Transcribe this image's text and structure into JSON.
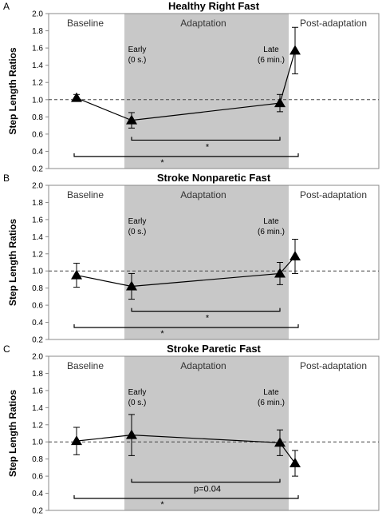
{
  "figure": {
    "colors": {
      "shade": "#c8c8c8",
      "ink": "#000000",
      "box": "#888888"
    }
  },
  "chart_data": [
    {
      "type": "line",
      "panel_letter": "A",
      "title": "Healthy Right Fast",
      "ylabel": "Step Length Ratios",
      "ylim": [
        0.2,
        2.0
      ],
      "yticks": [
        "0.2",
        "0.4",
        "0.6",
        "0.8",
        "1.0",
        "1.2",
        "1.4",
        "1.6",
        "1.8",
        "2.0"
      ],
      "reference_line": 1.0,
      "phases": [
        "Baseline",
        "Adaptation",
        "Post-adaptation"
      ],
      "early_label": [
        "Early",
        "(0 s.)"
      ],
      "late_label": [
        "Late",
        "(6 min.)"
      ],
      "points": [
        {
          "phase": "Baseline",
          "y": 1.02,
          "err": 0.04
        },
        {
          "phase": "Early",
          "y": 0.76,
          "err": 0.09
        },
        {
          "phase": "Late",
          "y": 0.96,
          "err": 0.1
        },
        {
          "phase": "Post-adaptation",
          "y": 1.57,
          "err": 0.27
        }
      ],
      "annotations": [
        {
          "from": "Early",
          "to": "Late",
          "label": "*"
        },
        {
          "from": "Baseline",
          "to": "Post-adaptation",
          "label": "*"
        }
      ]
    },
    {
      "type": "line",
      "panel_letter": "B",
      "title": "Stroke Nonparetic Fast",
      "ylabel": "Step Length Ratios",
      "ylim": [
        0.2,
        2.0
      ],
      "yticks": [
        "0.2",
        "0.4",
        "0.6",
        "0.8",
        "1.0",
        "1.2",
        "1.4",
        "1.6",
        "1.8",
        "2.0"
      ],
      "reference_line": 1.0,
      "phases": [
        "Baseline",
        "Adaptation",
        "Post-adaptation"
      ],
      "early_label": [
        "Early",
        "(0 s.)"
      ],
      "late_label": [
        "Late",
        "(6 min.)"
      ],
      "points": [
        {
          "phase": "Baseline",
          "y": 0.95,
          "err": 0.14
        },
        {
          "phase": "Early",
          "y": 0.82,
          "err": 0.15
        },
        {
          "phase": "Late",
          "y": 0.97,
          "err": 0.13
        },
        {
          "phase": "Post-adaptation",
          "y": 1.17,
          "err": 0.2
        }
      ],
      "annotations": [
        {
          "from": "Early",
          "to": "Late",
          "label": "*"
        },
        {
          "from": "Baseline",
          "to": "Post-adaptation",
          "label": "*"
        }
      ]
    },
    {
      "type": "line",
      "panel_letter": "C",
      "title": "Stroke Paretic Fast",
      "ylabel": "Step Length Ratios",
      "ylim": [
        0.2,
        2.0
      ],
      "yticks": [
        "0.2",
        "0.4",
        "0.6",
        "0.8",
        "1.0",
        "1.2",
        "1.4",
        "1.6",
        "1.8",
        "2.0"
      ],
      "reference_line": 1.0,
      "phases": [
        "Baseline",
        "Adaptation",
        "Post-adaptation"
      ],
      "early_label": [
        "Early",
        "(0 s.)"
      ],
      "late_label": [
        "Late",
        "(6 min.)"
      ],
      "points": [
        {
          "phase": "Baseline",
          "y": 1.01,
          "err": 0.16
        },
        {
          "phase": "Early",
          "y": 1.08,
          "err": 0.24
        },
        {
          "phase": "Late",
          "y": 0.99,
          "err": 0.15
        },
        {
          "phase": "Post-adaptation",
          "y": 0.75,
          "err": 0.15
        }
      ],
      "annotations": [
        {
          "from": "Early",
          "to": "Late",
          "label": "p=0.04"
        },
        {
          "from": "Baseline",
          "to": "Post-adaptation",
          "label": "*"
        }
      ]
    }
  ]
}
